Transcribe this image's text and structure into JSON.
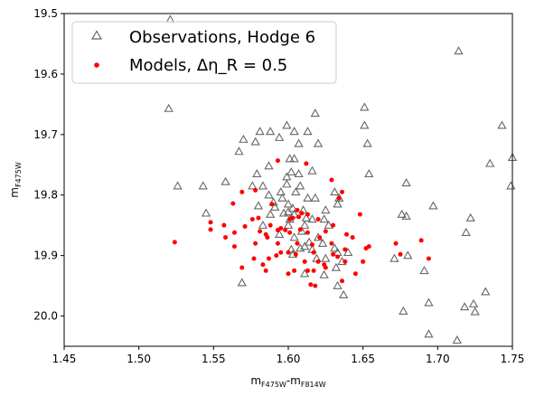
{
  "chart_data": {
    "type": "scatter",
    "xlabel_main": "m",
    "xlabel_sub1": "F475W",
    "xlabel_sep": "-m",
    "xlabel_sub2": "F814W",
    "ylabel_main": "m",
    "ylabel_sub": "F475W",
    "xlim": [
      1.45,
      1.75
    ],
    "ylim": [
      20.05,
      19.5
    ],
    "y_inverted": true,
    "grid": false,
    "legend_placement": "top-left",
    "xticks": [
      "1.45",
      "1.50",
      "1.55",
      "1.60",
      "1.65",
      "1.70",
      "1.75"
    ],
    "yticks": [
      "19.5",
      "19.6",
      "19.7",
      "19.8",
      "19.9",
      "20.0"
    ],
    "series": [
      {
        "name": "Observations, Hodge 6",
        "marker": "open-triangle",
        "color": "#666666",
        "points": [
          [
            1.521,
            19.51
          ],
          [
            1.714,
            19.562
          ],
          [
            1.52,
            19.657
          ],
          [
            1.651,
            19.655
          ],
          [
            1.618,
            19.665
          ],
          [
            1.743,
            19.685
          ],
          [
            1.651,
            19.685
          ],
          [
            1.599,
            19.685
          ],
          [
            1.581,
            19.695
          ],
          [
            1.588,
            19.695
          ],
          [
            1.604,
            19.695
          ],
          [
            1.613,
            19.695
          ],
          [
            1.57,
            19.708
          ],
          [
            1.594,
            19.705
          ],
          [
            1.578,
            19.712
          ],
          [
            1.653,
            19.715
          ],
          [
            1.607,
            19.715
          ],
          [
            1.62,
            19.715
          ],
          [
            1.567,
            19.728
          ],
          [
            1.601,
            19.74
          ],
          [
            1.604,
            19.74
          ],
          [
            1.735,
            19.748
          ],
          [
            1.75,
            19.738
          ],
          [
            1.587,
            19.752
          ],
          [
            1.602,
            19.762
          ],
          [
            1.607,
            19.765
          ],
          [
            1.616,
            19.76
          ],
          [
            1.654,
            19.765
          ],
          [
            1.599,
            19.77
          ],
          [
            1.579,
            19.765
          ],
          [
            1.576,
            19.785
          ],
          [
            1.583,
            19.785
          ],
          [
            1.558,
            19.778
          ],
          [
            1.526,
            19.785
          ],
          [
            1.543,
            19.785
          ],
          [
            1.599,
            19.782
          ],
          [
            1.608,
            19.785
          ],
          [
            1.679,
            19.78
          ],
          [
            1.749,
            19.785
          ],
          [
            1.595,
            19.795
          ],
          [
            1.587,
            19.8
          ],
          [
            1.596,
            19.805
          ],
          [
            1.605,
            19.795
          ],
          [
            1.618,
            19.805
          ],
          [
            1.613,
            19.805
          ],
          [
            1.631,
            19.795
          ],
          [
            1.634,
            19.805
          ],
          [
            1.59,
            19.812
          ],
          [
            1.6,
            19.815
          ],
          [
            1.591,
            19.82
          ],
          [
            1.58,
            19.818
          ],
          [
            1.603,
            19.822
          ],
          [
            1.633,
            19.815
          ],
          [
            1.6,
            19.828
          ],
          [
            1.61,
            19.825
          ],
          [
            1.625,
            19.825
          ],
          [
            1.697,
            19.818
          ],
          [
            1.588,
            19.832
          ],
          [
            1.597,
            19.83
          ],
          [
            1.601,
            19.84
          ],
          [
            1.604,
            19.832
          ],
          [
            1.612,
            19.838
          ],
          [
            1.616,
            19.84
          ],
          [
            1.624,
            19.84
          ],
          [
            1.676,
            19.832
          ],
          [
            1.679,
            19.835
          ],
          [
            1.545,
            19.83
          ],
          [
            1.722,
            19.838
          ],
          [
            1.583,
            19.85
          ],
          [
            1.6,
            19.85
          ],
          [
            1.611,
            19.85
          ],
          [
            1.609,
            19.86
          ],
          [
            1.627,
            19.85
          ],
          [
            1.719,
            19.862
          ],
          [
            1.594,
            19.865
          ],
          [
            1.604,
            19.87
          ],
          [
            1.62,
            19.87
          ],
          [
            1.614,
            19.878
          ],
          [
            1.623,
            19.88
          ],
          [
            1.611,
            19.885
          ],
          [
            1.608,
            19.888
          ],
          [
            1.602,
            19.89
          ],
          [
            1.616,
            19.89
          ],
          [
            1.631,
            19.888
          ],
          [
            1.633,
            19.895
          ],
          [
            1.64,
            19.895
          ],
          [
            1.68,
            19.9
          ],
          [
            1.671,
            19.905
          ],
          [
            1.603,
            19.898
          ],
          [
            1.619,
            19.905
          ],
          [
            1.625,
            19.905
          ],
          [
            1.636,
            19.91
          ],
          [
            1.632,
            19.92
          ],
          [
            1.691,
            19.925
          ],
          [
            1.611,
            19.93
          ],
          [
            1.624,
            19.932
          ],
          [
            1.569,
            19.945
          ],
          [
            1.633,
            19.95
          ],
          [
            1.637,
            19.965
          ],
          [
            1.732,
            19.96
          ],
          [
            1.694,
            19.978
          ],
          [
            1.718,
            19.985
          ],
          [
            1.724,
            19.98
          ],
          [
            1.677,
            19.992
          ],
          [
            1.725,
            19.993
          ],
          [
            1.694,
            20.03
          ],
          [
            1.713,
            20.04
          ]
        ]
      },
      {
        "name": "Models, Δη_R = 0.5",
        "marker": "filled-circle",
        "color": "#ff0000",
        "points": [
          [
            1.593,
            19.743
          ],
          [
            1.612,
            19.748
          ],
          [
            1.569,
            19.795
          ],
          [
            1.578,
            19.792
          ],
          [
            1.629,
            19.775
          ],
          [
            1.636,
            19.795
          ],
          [
            1.634,
            19.805
          ],
          [
            1.563,
            19.814
          ],
          [
            1.589,
            19.815
          ],
          [
            1.606,
            19.825
          ],
          [
            1.609,
            19.83
          ],
          [
            1.613,
            19.832
          ],
          [
            1.607,
            19.836
          ],
          [
            1.603,
            19.838
          ],
          [
            1.601,
            19.84
          ],
          [
            1.62,
            19.84
          ],
          [
            1.58,
            19.838
          ],
          [
            1.576,
            19.84
          ],
          [
            1.548,
            19.845
          ],
          [
            1.557,
            19.85
          ],
          [
            1.571,
            19.852
          ],
          [
            1.588,
            19.85
          ],
          [
            1.63,
            19.85
          ],
          [
            1.648,
            19.832
          ],
          [
            1.595,
            19.855
          ],
          [
            1.598,
            19.858
          ],
          [
            1.601,
            19.862
          ],
          [
            1.593,
            19.858
          ],
          [
            1.608,
            19.857
          ],
          [
            1.613,
            19.862
          ],
          [
            1.625,
            19.86
          ],
          [
            1.581,
            19.86
          ],
          [
            1.585,
            19.865
          ],
          [
            1.564,
            19.862
          ],
          [
            1.548,
            19.857
          ],
          [
            1.558,
            19.87
          ],
          [
            1.639,
            19.865
          ],
          [
            1.643,
            19.87
          ],
          [
            1.621,
            19.87
          ],
          [
            1.586,
            19.87
          ],
          [
            1.564,
            19.885
          ],
          [
            1.578,
            19.88
          ],
          [
            1.593,
            19.88
          ],
          [
            1.606,
            19.88
          ],
          [
            1.616,
            19.882
          ],
          [
            1.629,
            19.88
          ],
          [
            1.638,
            19.89
          ],
          [
            1.652,
            19.888
          ],
          [
            1.654,
            19.885
          ],
          [
            1.672,
            19.88
          ],
          [
            1.689,
            19.875
          ],
          [
            1.524,
            19.878
          ],
          [
            1.595,
            19.895
          ],
          [
            1.6,
            19.895
          ],
          [
            1.605,
            19.898
          ],
          [
            1.617,
            19.895
          ],
          [
            1.63,
            19.898
          ],
          [
            1.633,
            19.902
          ],
          [
            1.592,
            19.9
          ],
          [
            1.587,
            19.905
          ],
          [
            1.577,
            19.905
          ],
          [
            1.694,
            19.905
          ],
          [
            1.675,
            19.898
          ],
          [
            1.611,
            19.91
          ],
          [
            1.62,
            19.91
          ],
          [
            1.624,
            19.915
          ],
          [
            1.638,
            19.91
          ],
          [
            1.65,
            19.91
          ],
          [
            1.583,
            19.915
          ],
          [
            1.569,
            19.92
          ],
          [
            1.585,
            19.925
          ],
          [
            1.604,
            19.925
          ],
          [
            1.613,
            19.925
          ],
          [
            1.617,
            19.925
          ],
          [
            1.625,
            19.92
          ],
          [
            1.645,
            19.93
          ],
          [
            1.636,
            19.942
          ],
          [
            1.615,
            19.948
          ],
          [
            1.618,
            19.95
          ],
          [
            1.6,
            19.93
          ]
        ]
      }
    ]
  }
}
